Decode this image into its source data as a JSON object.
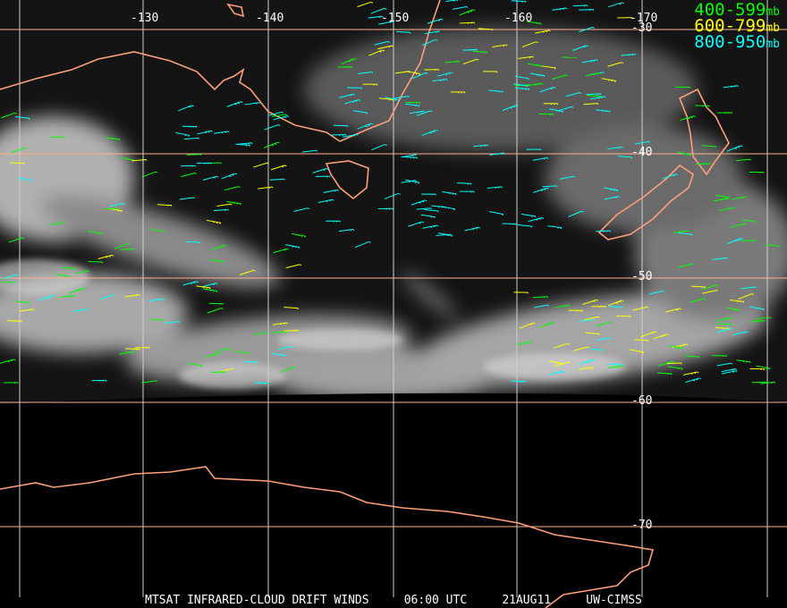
{
  "title_bar": {
    "product": "MTSAT INFRARED-CLOUD DRIFT WINDS",
    "time": "06:00 UTC",
    "date": "21AUG11",
    "source": "UW-CIMSS"
  },
  "legend": [
    {
      "range": "400-599",
      "unit": "mb",
      "color": "#00ff00"
    },
    {
      "range": "600-799",
      "unit": "mb",
      "color": "#ffff00"
    },
    {
      "range": "800-950",
      "unit": "mb",
      "color": "#00ffff"
    }
  ],
  "longitude_labels": [
    "-130",
    "-140",
    "-150",
    "-160",
    "-170"
  ],
  "latitude_labels": [
    "-30",
    "-40",
    "-50",
    "-60",
    "-70"
  ],
  "colors": {
    "coastline": "#ff9f7a",
    "grid_vertical": "#d0d0d0",
    "grid_horizontal": "#ffb090"
  }
}
